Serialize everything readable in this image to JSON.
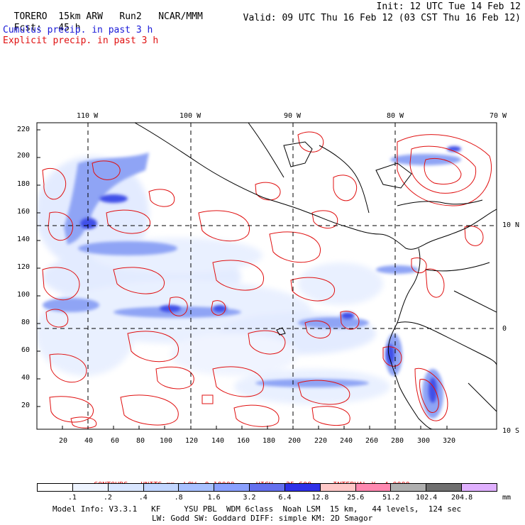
{
  "header": {
    "model": "TORERO",
    "resolution": "15km ARW",
    "run": "Run2",
    "org": "NCAR/MMM",
    "init": "Init: 12 UTC Tue 14 Feb 12",
    "fcst_label": "Fcst:",
    "fcst_value": "45 h",
    "valid": "Valid: 09 UTC Thu 16 Feb 12 (03 CST Thu 16 Feb 12)",
    "legend_cumulus": "Cumulus precip. in past 3 h",
    "legend_explicit": "Explicit precip. in past 3 h"
  },
  "map": {
    "top_lon_labels": [
      "110 W",
      "100 W",
      "90 W",
      "80 W",
      "70 W"
    ],
    "right_lat_labels": [
      "10 N",
      "0",
      "10 S"
    ],
    "left_y_ticks": [
      "220",
      "200",
      "180",
      "160",
      "140",
      "120",
      "100",
      "80",
      "60",
      "40",
      "20"
    ],
    "bottom_x_ticks": [
      "20",
      "40",
      "60",
      "80",
      "100",
      "120",
      "140",
      "160",
      "180",
      "200",
      "220",
      "240",
      "260",
      "280",
      "300",
      "320"
    ]
  },
  "contours": {
    "caption_units": "CONTOURS:  UNITS=mm",
    "low": "LOW= 0.10000",
    "high": "HIGH=  25.600",
    "interval": "INTERVAL=X  4.0000"
  },
  "colorbar": {
    "unit": "mm",
    "labels": [
      ".1",
      ".2",
      ".4",
      ".8",
      "1.6",
      "3.2",
      "6.4",
      "12.8",
      "25.6",
      "51.2",
      "102.4",
      "204.8"
    ],
    "colors": [
      "#ffffff",
      "#eef4ff",
      "#d9e6ff",
      "#c2d6ff",
      "#a8c0ff",
      "#8aa0ff",
      "#6670ee",
      "#3030e8",
      "#ffc8c8",
      "#ff88b0",
      "#b0b0b0",
      "#707070",
      "#e0b0ff"
    ]
  },
  "model_info": {
    "line1": "Model Info: V3.3.1   KF     YSU PBL  WDM 6class  Noah LSM  15 km,   44 levels,  124 sec",
    "line2": "LW: Godd SW: Goddard DIFF: simple KM: 2D Smagor"
  }
}
